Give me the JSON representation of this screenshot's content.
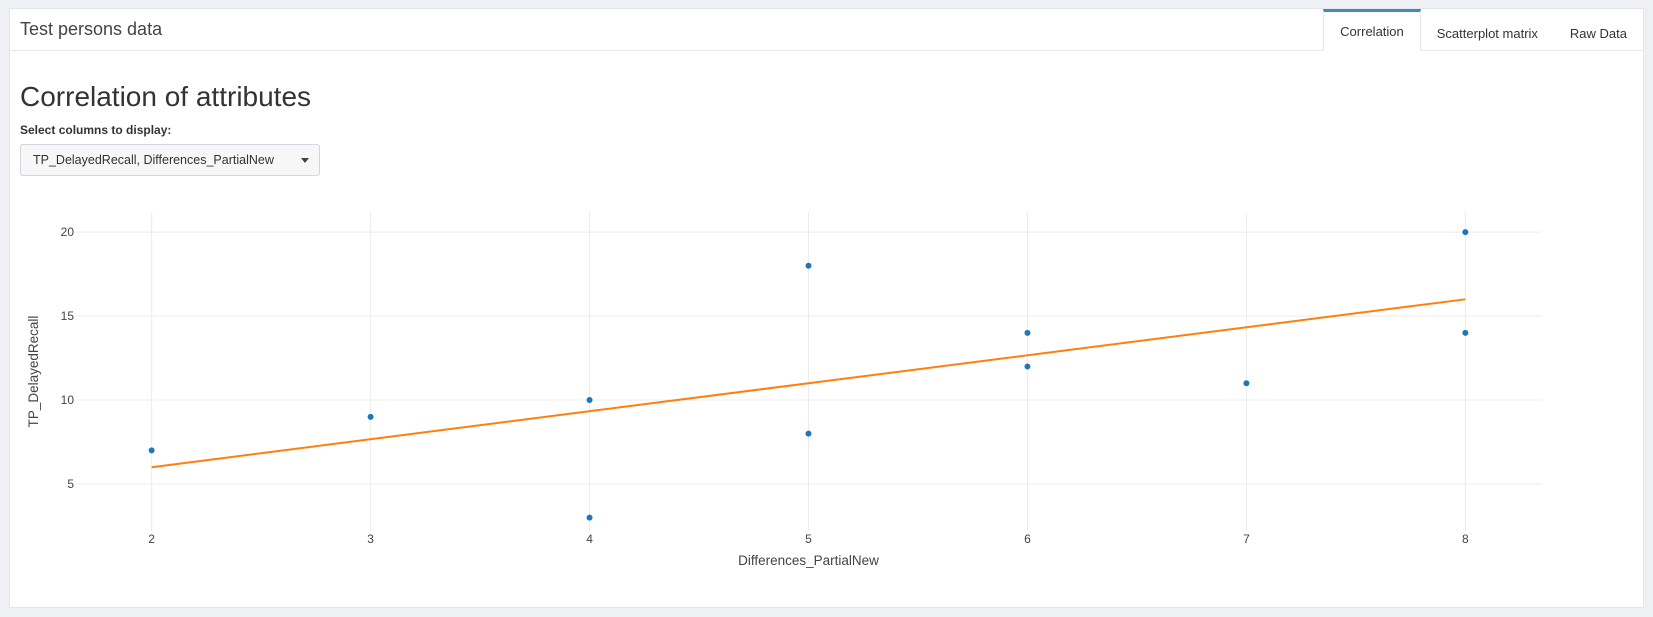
{
  "app": {
    "title": "Test persons data"
  },
  "tabs": [
    {
      "label": "Correlation",
      "active": true
    },
    {
      "label": "Scatterplot matrix",
      "active": false
    },
    {
      "label": "Raw Data",
      "active": false
    }
  ],
  "main": {
    "section_title": "Correlation of attributes",
    "select_label": "Select columns to display:",
    "select_value": "TP_DelayedRecall, Differences_PartialNew"
  },
  "chart_data": {
    "type": "scatter",
    "xlabel": "Differences_PartialNew",
    "ylabel": "TP_DelayedRecall",
    "xlim": [
      1.65,
      8.35
    ],
    "ylim": [
      2.2,
      21.2
    ],
    "xticks": [
      2,
      3,
      4,
      5,
      6,
      7,
      8
    ],
    "yticks": [
      5,
      10,
      15,
      20
    ],
    "grid": true,
    "points": [
      {
        "x": 2,
        "y": 7
      },
      {
        "x": 3,
        "y": 9
      },
      {
        "x": 4,
        "y": 10
      },
      {
        "x": 4,
        "y": 3
      },
      {
        "x": 5,
        "y": 18
      },
      {
        "x": 5,
        "y": 8
      },
      {
        "x": 6,
        "y": 14
      },
      {
        "x": 6,
        "y": 12
      },
      {
        "x": 7,
        "y": 11
      },
      {
        "x": 8,
        "y": 20
      },
      {
        "x": 8,
        "y": 14
      }
    ],
    "trendline": {
      "x": [
        2,
        8
      ],
      "y": [
        6,
        16
      ]
    },
    "colors": {
      "points": "#1f77b4",
      "trendline": "#ff7f0e",
      "grid": "#ececec"
    }
  }
}
